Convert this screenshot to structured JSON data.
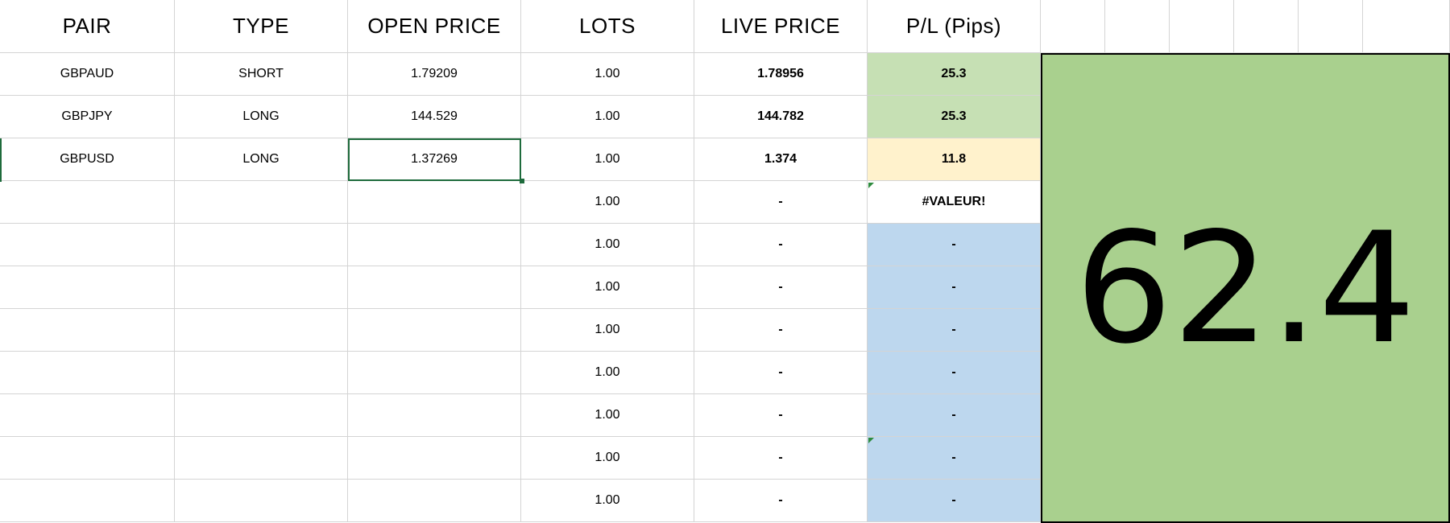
{
  "headers": [
    "PAIR",
    "TYPE",
    "OPEN PRICE",
    "LOTS",
    "LIVE PRICE",
    "P/L (Pips)"
  ],
  "rows": [
    {
      "pair": "GBPAUD",
      "type": "SHORT",
      "open": "1.79209",
      "lots": "1.00",
      "live": "1.78956",
      "pl": "25.3",
      "pl_color": "#c6e0b4"
    },
    {
      "pair": "GBPJPY",
      "type": "LONG",
      "open": "144.529",
      "lots": "1.00",
      "live": "144.782",
      "pl": "25.3",
      "pl_color": "#c6e0b4"
    },
    {
      "pair": "GBPUSD",
      "type": "LONG",
      "open": "1.37269",
      "lots": "1.00",
      "live": "1.374",
      "pl": "11.8",
      "pl_color": "#fff2cc"
    },
    {
      "pair": "",
      "type": "",
      "open": "",
      "lots": "1.00",
      "live": "-",
      "pl": "#VALEUR!",
      "pl_color": "#ffffff"
    },
    {
      "pair": "",
      "type": "",
      "open": "",
      "lots": "1.00",
      "live": "-",
      "pl": "-",
      "pl_color": "#bdd7ee"
    },
    {
      "pair": "",
      "type": "",
      "open": "",
      "lots": "1.00",
      "live": "-",
      "pl": "-",
      "pl_color": "#bdd7ee"
    },
    {
      "pair": "",
      "type": "",
      "open": "",
      "lots": "1.00",
      "live": "-",
      "pl": "-",
      "pl_color": "#bdd7ee"
    },
    {
      "pair": "",
      "type": "",
      "open": "",
      "lots": "1.00",
      "live": "-",
      "pl": "-",
      "pl_color": "#bdd7ee"
    },
    {
      "pair": "",
      "type": "",
      "open": "",
      "lots": "1.00",
      "live": "-",
      "pl": "-",
      "pl_color": "#bdd7ee"
    },
    {
      "pair": "",
      "type": "",
      "open": "",
      "lots": "1.00",
      "live": "-",
      "pl": "-",
      "pl_color": "#bdd7ee"
    },
    {
      "pair": "",
      "type": "",
      "open": "",
      "lots": "1.00",
      "live": "-",
      "pl": "-",
      "pl_color": "#bdd7ee"
    }
  ],
  "total": {
    "value": "62.4",
    "color": "#a9d08e"
  },
  "colors": {
    "selection": "#1e6b3c",
    "grid": "#d4d4d4"
  }
}
